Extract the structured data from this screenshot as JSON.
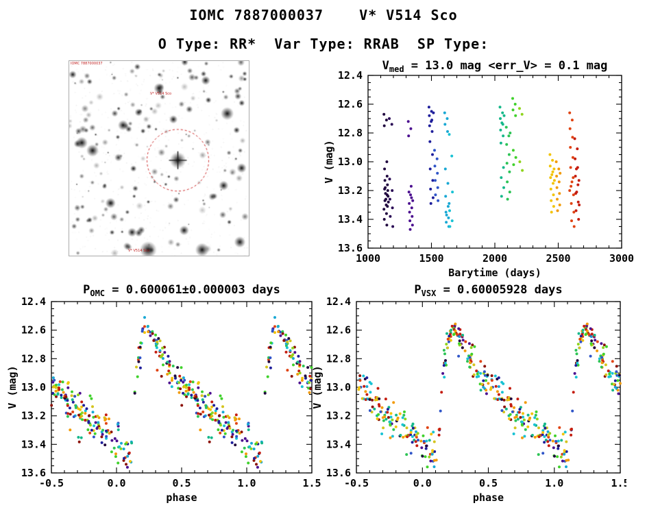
{
  "header": {
    "title": "IOMC 7887000037    V* V514 Sco",
    "subtitle": "O Type: RR*  Var Type: RRAB  SP Type:"
  },
  "finder": {
    "labels": {
      "top_left": "IOMC 7887000037",
      "target": "V* V514 Sco",
      "bottom": "V* V514 Sco"
    },
    "marker_color": "#cc2222",
    "star_count": 175,
    "bright_stars": [
      [
        0.605,
        0.51,
        5.0
      ],
      [
        0.88,
        0.27,
        4.0
      ],
      [
        0.3,
        0.33,
        3.2
      ],
      [
        0.07,
        0.42,
        3.6
      ],
      [
        0.5,
        0.14,
        3.2
      ],
      [
        0.86,
        0.64,
        3.0
      ],
      [
        0.44,
        0.97,
        5.2
      ],
      [
        0.23,
        0.73,
        3.2
      ],
      [
        0.64,
        0.87,
        3.0
      ],
      [
        0.95,
        0.93,
        3.5
      ],
      [
        0.13,
        0.46,
        3.8
      ],
      [
        0.76,
        0.1,
        2.8
      ],
      [
        0.96,
        0.55,
        3.0
      ],
      [
        0.58,
        0.3,
        2.6
      ],
      [
        0.74,
        0.97,
        4.2
      ],
      [
        0.35,
        0.88,
        2.8
      ]
    ]
  },
  "palette": [
    "#20063f",
    "#4b0f8f",
    "#1f1f9b",
    "#2f55c8",
    "#19a8d4",
    "#19c2d4",
    "#16b88a",
    "#2dc455",
    "#40d12c",
    "#8fd41e",
    "#d4c41e",
    "#f2c409",
    "#f29b09",
    "#e04312",
    "#c41d10",
    "#8c1208"
  ],
  "chart_data": [
    {
      "id": "barytime",
      "type": "scatter",
      "title": {
        "pre": "V",
        "sub": "med",
        "post": " = 13.0 mag <err_V> = 0.1 mag"
      },
      "xlabel": "Barytime (days)",
      "ylabel": "V (mag)",
      "xlim": [
        1000,
        3000
      ],
      "ylim": [
        12.4,
        13.6
      ],
      "y_inverted": true,
      "xticks": {
        "values": [
          1000,
          1500,
          2000,
          2500,
          3000
        ],
        "labels": [
          "1000",
          "1500",
          "2000",
          "2500",
          "3000"
        ],
        "minor_step": 100
      },
      "yticks": {
        "values": [
          12.4,
          12.6,
          12.8,
          13.0,
          13.2,
          13.4,
          13.6
        ],
        "labels": [
          "12.4",
          "12.6",
          "12.8",
          "13.0",
          "13.2",
          "13.4",
          "13.6"
        ],
        "minor_step": 0.05
      },
      "clusters": [
        {
          "x": 1143,
          "c": "#20063f",
          "v": [
            12.67,
            12.71,
            12.75,
            13.0,
            13.05,
            13.1,
            13.13,
            13.16,
            13.18,
            13.2,
            13.22,
            13.24,
            13.26,
            13.28,
            13.3,
            13.33,
            13.36,
            13.4,
            13.44,
            13.19,
            13.23,
            13.27,
            13.31
          ]
        },
        {
          "x": 1185,
          "c": "#2a0a55",
          "v": [
            12.7,
            12.74,
            13.12,
            13.2,
            13.26,
            13.32,
            13.38,
            13.45
          ]
        },
        {
          "x": 1335,
          "c": "#4b0f8f",
          "v": [
            12.72,
            12.77,
            12.82,
            13.17,
            13.21,
            13.25,
            13.29,
            13.32,
            13.35,
            13.38,
            13.41,
            13.44,
            13.47,
            13.27,
            13.23
          ]
        },
        {
          "x": 1498,
          "c": "#1f1f9b",
          "v": [
            12.62,
            12.65,
            12.68,
            12.71,
            12.75,
            12.79,
            12.86,
            12.95,
            13.05,
            13.13,
            13.19,
            13.25,
            13.29,
            12.66,
            12.72
          ]
        },
        {
          "x": 1542,
          "c": "#2f55c8",
          "v": [
            12.92,
            12.98,
            13.03,
            13.08,
            13.13,
            13.18,
            13.23,
            13.27
          ]
        },
        {
          "x": 1622,
          "c": "#19a8d4",
          "v": [
            12.66,
            12.7,
            12.74,
            12.79,
            13.05,
            13.15,
            13.24,
            13.31,
            13.35,
            13.39,
            13.42,
            13.45,
            13.37,
            13.29
          ]
        },
        {
          "x": 1658,
          "c": "#19c2d4",
          "v": [
            12.81,
            12.96,
            13.34,
            13.41,
            13.45,
            13.21
          ]
        },
        {
          "x": 2058,
          "c": "#16b88a",
          "v": [
            12.62,
            12.66,
            12.7,
            12.74,
            12.78,
            12.82,
            12.87,
            13.04,
            13.11,
            13.18,
            13.24,
            12.68,
            12.73
          ]
        },
        {
          "x": 2108,
          "c": "#2dc455",
          "v": [
            12.76,
            12.82,
            12.88,
            12.95,
            13.01,
            13.07,
            13.14,
            13.21,
            13.26,
            12.8
          ]
        },
        {
          "x": 2158,
          "c": "#40d12c",
          "v": [
            12.56,
            12.6,
            12.64,
            12.68,
            12.92,
            12.97,
            13.02
          ]
        },
        {
          "x": 2212,
          "c": "#8fd41e",
          "v": [
            12.63,
            12.67,
            13.0,
            13.06
          ]
        },
        {
          "x": 2452,
          "c": "#f2c409",
          "v": [
            12.95,
            12.99,
            13.03,
            13.07,
            13.11,
            13.15,
            13.19,
            13.23,
            13.27,
            13.31,
            13.35,
            13.05,
            13.09,
            13.13
          ]
        },
        {
          "x": 2502,
          "c": "#f29b09",
          "v": [
            13.0,
            13.05,
            13.1,
            13.14,
            13.18,
            13.22,
            13.26,
            13.3,
            13.34,
            13.08
          ]
        },
        {
          "x": 2608,
          "c": "#e04312",
          "v": [
            12.66,
            12.71,
            12.77,
            12.83,
            12.9,
            12.97,
            13.04,
            13.11,
            13.17,
            13.23,
            13.29,
            13.35,
            13.41,
            13.45,
            13.14,
            13.2
          ]
        },
        {
          "x": 2648,
          "c": "#c41d10",
          "v": [
            12.84,
            12.91,
            12.98,
            13.04,
            13.1,
            13.16,
            13.22,
            13.28,
            13.34,
            13.4,
            13.05,
            13.13,
            13.21,
            13.3
          ]
        }
      ]
    },
    {
      "id": "phase_omc",
      "type": "scatter",
      "title": {
        "pre": "P",
        "sub": "OMC",
        "post": " = 0.600061±0.000003 days"
      },
      "xlabel": "phase",
      "ylabel": "V (mag)",
      "xlim": [
        -0.5,
        1.5
      ],
      "ylim": [
        12.4,
        13.6
      ],
      "y_inverted": true,
      "xticks": {
        "values": [
          -0.5,
          0,
          0.5,
          1,
          1.5
        ],
        "labels": [
          "-0.5",
          "0.0",
          "0.5",
          "1.0",
          "1.5"
        ],
        "minor_step": 0.1
      },
      "yticks": {
        "values": [
          12.4,
          12.6,
          12.8,
          13.0,
          13.2,
          13.4,
          13.6
        ],
        "labels": [
          "12.4",
          "12.6",
          "12.8",
          "13.0",
          "13.2",
          "13.4",
          "13.6"
        ],
        "minor_step": 0.05
      },
      "lightcurve_knots": [
        [
          0.0,
          13.37
        ],
        [
          0.04,
          13.42
        ],
        [
          0.08,
          13.46
        ],
        [
          0.1,
          13.47
        ],
        [
          0.12,
          13.33
        ],
        [
          0.14,
          13.08
        ],
        [
          0.17,
          12.8
        ],
        [
          0.2,
          12.64
        ],
        [
          0.23,
          12.59
        ],
        [
          0.26,
          12.61
        ],
        [
          0.3,
          12.68
        ],
        [
          0.35,
          12.77
        ],
        [
          0.42,
          12.87
        ],
        [
          0.5,
          12.97
        ],
        [
          0.58,
          13.05
        ],
        [
          0.66,
          13.13
        ],
        [
          0.75,
          13.21
        ],
        [
          0.85,
          13.28
        ],
        [
          0.92,
          13.32
        ],
        [
          0.97,
          13.35
        ],
        [
          1.0,
          13.37
        ]
      ],
      "n_points": 250,
      "scatter_sigma": 0.05,
      "seed": 7
    },
    {
      "id": "phase_vsx",
      "type": "scatter",
      "title": {
        "pre": "P",
        "sub": "VSX",
        "post": " = 0.60005928 days"
      },
      "xlabel": "phase",
      "ylabel": "V (mag)",
      "xlim": [
        -0.5,
        1.5
      ],
      "ylim": [
        12.4,
        13.6
      ],
      "y_inverted": true,
      "xticks": {
        "values": [
          -0.5,
          0,
          0.5,
          1,
          1.5
        ],
        "labels": [
          "-0.5",
          "0.0",
          "0.5",
          "1.0",
          "1.5"
        ],
        "minor_step": 0.1
      },
      "yticks": {
        "values": [
          12.4,
          12.6,
          12.8,
          13.0,
          13.2,
          13.4,
          13.6
        ],
        "labels": [
          "12.4",
          "12.6",
          "12.8",
          "13.0",
          "13.2",
          "13.4",
          "13.6"
        ],
        "minor_step": 0.05
      },
      "lightcurve_knots": [
        [
          0.0,
          13.37
        ],
        [
          0.04,
          13.42
        ],
        [
          0.08,
          13.46
        ],
        [
          0.1,
          13.47
        ],
        [
          0.12,
          13.33
        ],
        [
          0.14,
          13.08
        ],
        [
          0.17,
          12.8
        ],
        [
          0.2,
          12.64
        ],
        [
          0.23,
          12.59
        ],
        [
          0.26,
          12.61
        ],
        [
          0.3,
          12.68
        ],
        [
          0.35,
          12.77
        ],
        [
          0.42,
          12.87
        ],
        [
          0.5,
          12.97
        ],
        [
          0.58,
          13.05
        ],
        [
          0.66,
          13.13
        ],
        [
          0.75,
          13.21
        ],
        [
          0.85,
          13.28
        ],
        [
          0.92,
          13.32
        ],
        [
          0.97,
          13.35
        ],
        [
          1.0,
          13.37
        ]
      ],
      "n_points": 250,
      "scatter_sigma": 0.05,
      "seed": 13
    }
  ]
}
